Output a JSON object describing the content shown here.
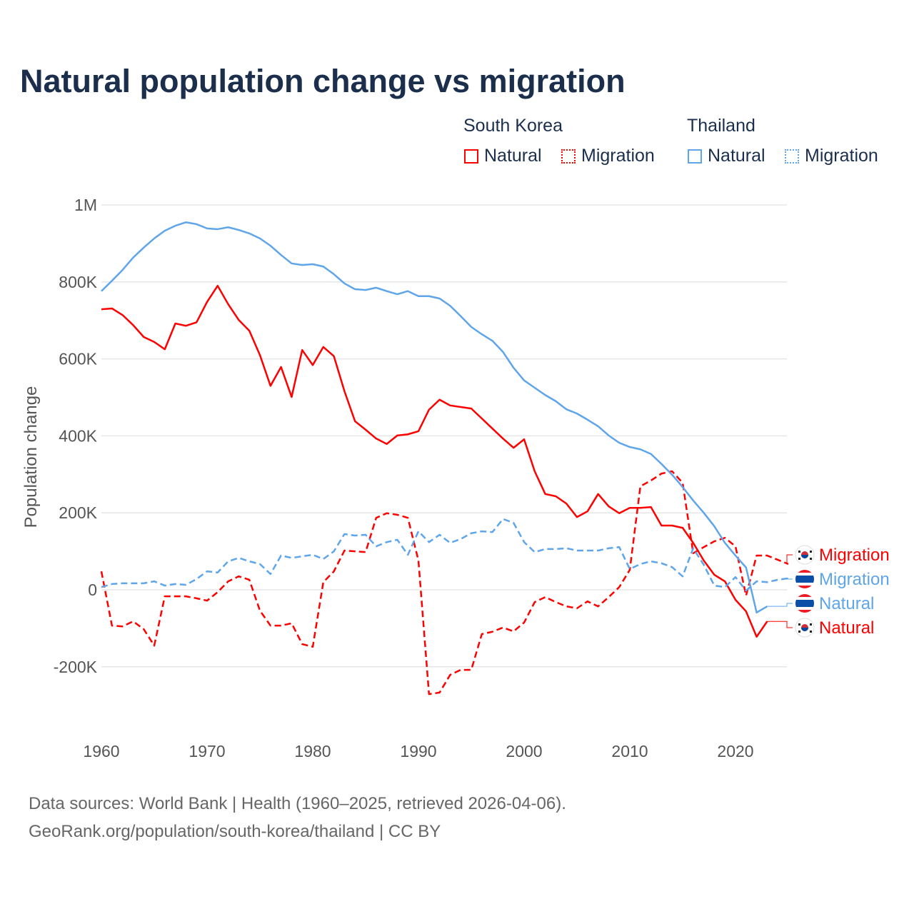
{
  "title": "Natural population change vs migration",
  "legend": {
    "groups": [
      {
        "name": "South Korea",
        "color": "#ff0000",
        "items": [
          "Natural",
          "Migration"
        ]
      },
      {
        "name": "Thailand",
        "color": "#5fa5ea",
        "items": [
          "Natural",
          "Migration"
        ]
      }
    ]
  },
  "footer": {
    "line1": "Data sources: World Bank | Health (1960–2025, retrieved 2026-04-06).",
    "line2": "GeoRank.org/population/south-korea/thailand | CC BY"
  },
  "chart_data": {
    "type": "line",
    "title": "Natural population change vs migration",
    "xlabel": "",
    "ylabel": "Population change",
    "xlim": [
      1960,
      2025
    ],
    "ylim": [
      -300,
      1000
    ],
    "y_unit": "thousands",
    "x_ticks": [
      "1960",
      "1970",
      "1980",
      "1990",
      "2000",
      "2010",
      "2020"
    ],
    "y_ticks": [
      {
        "v": -200,
        "label": "-200K"
      },
      {
        "v": 0,
        "label": "0"
      },
      {
        "v": 200,
        "label": "200K"
      },
      {
        "v": 400,
        "label": "400K"
      },
      {
        "v": 600,
        "label": "600K"
      },
      {
        "v": 800,
        "label": "800K"
      },
      {
        "v": 1000,
        "label": "1M"
      }
    ],
    "grid": true,
    "legend_position": "top-right",
    "series": [
      {
        "name": "South Korea Natural",
        "label": "Natural",
        "color": "#ff0000",
        "dashed": false,
        "start": 1960,
        "values": [
          729,
          731,
          714,
          688,
          657,
          644,
          625,
          692,
          686,
          695,
          748,
          790,
          742,
          701,
          673,
          610,
          530,
          579,
          501,
          623,
          584,
          631,
          607,
          516,
          438,
          416,
          393,
          379,
          401,
          404,
          412,
          468,
          494,
          479,
          475,
          471,
          445,
          419,
          393,
          369,
          391,
          308,
          249,
          243,
          224,
          189,
          204,
          249,
          217,
          199,
          213,
          213,
          215,
          167,
          167,
          161,
          122,
          76,
          39,
          22,
          -26,
          -56,
          -122,
          -82
        ]
      },
      {
        "name": "South Korea Migration",
        "label": "Migration",
        "color": "#ff0000",
        "dashed": true,
        "start": 1960,
        "values": [
          48,
          -93,
          -95,
          -82,
          -102,
          -145,
          -17,
          -17,
          -17,
          -22,
          -28,
          -6,
          22,
          35,
          26,
          -54,
          -93,
          -93,
          -87,
          -141,
          -148,
          20,
          48,
          102,
          100,
          98,
          187,
          199,
          195,
          187,
          76,
          -271,
          -267,
          -221,
          -208,
          -208,
          -115,
          -109,
          -98,
          -108,
          -85,
          -32,
          -19,
          -32,
          -43,
          -48,
          -30,
          -43,
          -19,
          7,
          52,
          269,
          284,
          302,
          308,
          278,
          95,
          111,
          126,
          135,
          113,
          -15,
          89,
          89,
          78,
          67
        ]
      },
      {
        "name": "Thailand Natural",
        "label": "Natural",
        "color": "#5fa5ea",
        "dashed": false,
        "start": 1960,
        "values": [
          776,
          803,
          831,
          863,
          889,
          913,
          933,
          946,
          955,
          950,
          939,
          937,
          942,
          935,
          926,
          913,
          894,
          870,
          848,
          844,
          846,
          840,
          820,
          796,
          781,
          779,
          785,
          776,
          768,
          776,
          763,
          763,
          757,
          738,
          711,
          683,
          664,
          647,
          618,
          577,
          544,
          525,
          506,
          490,
          469,
          458,
          442,
          425,
          401,
          382,
          371,
          365,
          353,
          327,
          299,
          267,
          232,
          200,
          165,
          122,
          89,
          58,
          -59,
          -43
        ]
      },
      {
        "name": "Thailand Migration",
        "label": "Migration",
        "color": "#5fa5ea",
        "dashed": true,
        "start": 1960,
        "values": [
          7,
          15,
          17,
          17,
          17,
          22,
          11,
          15,
          13,
          28,
          48,
          45,
          74,
          83,
          74,
          67,
          41,
          89,
          83,
          87,
          91,
          80,
          100,
          145,
          141,
          143,
          113,
          124,
          130,
          91,
          152,
          124,
          143,
          122,
          132,
          147,
          152,
          150,
          184,
          174,
          124,
          98,
          106,
          106,
          108,
          102,
          102,
          102,
          108,
          111,
          54,
          67,
          74,
          69,
          59,
          35,
          108,
          65,
          11,
          7,
          33,
          -2,
          22,
          20,
          26,
          30
        ]
      }
    ],
    "end_labels_order": [
      1,
      3,
      2,
      0
    ]
  }
}
